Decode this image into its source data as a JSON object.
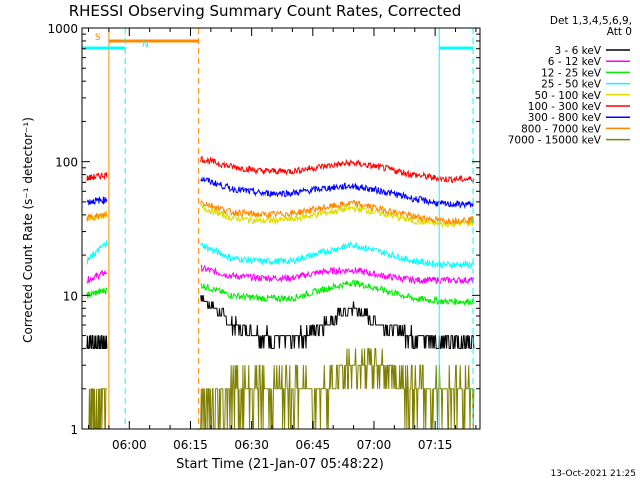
{
  "chart_data": {
    "type": "line",
    "title": "RHESSI Observing Summary Count Rates, Corrected",
    "xlabel": "Start Time (21-Jan-07 05:48:22)",
    "ylabel": "Corrected Count Rate (s⁻¹ detector⁻¹)",
    "yscale": "log",
    "ylim": [
      1,
      1000
    ],
    "xlim_minutes": [
      48.4,
      146
    ],
    "x_ticks": [
      {
        "label": "06:00",
        "min": 60
      },
      {
        "label": "06:15",
        "min": 75
      },
      {
        "label": "06:30",
        "min": 90
      },
      {
        "label": "06:45",
        "min": 105
      },
      {
        "label": "07:00",
        "min": 120
      },
      {
        "label": "07:15",
        "min": 135
      }
    ],
    "y_ticks": [
      {
        "label": "1",
        "value": 1
      },
      {
        "label": "10",
        "value": 10
      },
      {
        "label": "100",
        "value": 100
      },
      {
        "label": "1000",
        "value": 1000
      }
    ],
    "legend": {
      "placement": "right",
      "header": [
        "Det 1,3,4,5,6,9,",
        "Att 0"
      ],
      "entries": [
        {
          "label": "3 - 6 keV",
          "color": "#000000"
        },
        {
          "label": "6 - 12 keV",
          "color": "#ff00ff"
        },
        {
          "label": "12 - 25 keV",
          "color": "#00ee00"
        },
        {
          "label": "25 - 50 keV",
          "color": "#00ffff"
        },
        {
          "label": "50 - 100 keV",
          "color": "#dddd00"
        },
        {
          "label": "100 - 300 keV",
          "color": "#ff0000"
        },
        {
          "label": "300 - 800 keV",
          "color": "#0000ff"
        },
        {
          "label": "800 - 7000 keV",
          "color": "#ff8800"
        },
        {
          "label": "7000 - 15000 keV",
          "color": "#808000"
        }
      ]
    },
    "gap_minutes": [
      54.5,
      77.5
    ],
    "series": [
      {
        "name": "3 - 6 keV",
        "color": "#000000",
        "values_before_gap": [
          4.5,
          4.5
        ],
        "values_after_gap": [
          10,
          6,
          5,
          4.5,
          6,
          8,
          6,
          5,
          4.5,
          4.5
        ]
      },
      {
        "name": "6 - 12 keV",
        "color": "#ff00ff",
        "values_before_gap": [
          13,
          15
        ],
        "values_after_gap": [
          16,
          14,
          13.5,
          13.5,
          15,
          15.5,
          14,
          13,
          13,
          13
        ]
      },
      {
        "name": "12 - 25 keV",
        "color": "#00ee00",
        "values_before_gap": [
          10,
          11
        ],
        "values_after_gap": [
          12,
          10,
          9.5,
          9.5,
          11,
          12.5,
          11,
          9.5,
          9,
          9
        ]
      },
      {
        "name": "25 - 50 keV",
        "color": "#00ffff",
        "values_before_gap": [
          18,
          25
        ],
        "values_after_gap": [
          24,
          19,
          18,
          18,
          21,
          24,
          21,
          18,
          17,
          17
        ]
      },
      {
        "name": "50 - 100 keV",
        "color": "#dddd00",
        "values_before_gap": [
          37,
          40
        ],
        "values_after_gap": [
          46,
          38,
          36,
          37,
          41,
          45,
          41,
          36,
          34,
          35
        ]
      },
      {
        "name": "100 - 300 keV",
        "color": "#ff0000",
        "values_before_gap": [
          75,
          80
        ],
        "values_after_gap": [
          105,
          92,
          85,
          85,
          92,
          98,
          90,
          80,
          74,
          74
        ]
      },
      {
        "name": "300 - 800 keV",
        "color": "#0000ff",
        "values_before_gap": [
          50,
          52
        ],
        "values_after_gap": [
          75,
          63,
          58,
          58,
          63,
          66,
          60,
          53,
          48,
          48
        ]
      },
      {
        "name": "800 - 7000 keV",
        "color": "#ff8800",
        "values_before_gap": [
          38,
          40
        ],
        "values_after_gap": [
          50,
          42,
          40,
          41,
          45,
          49,
          44,
          39,
          36,
          37
        ]
      },
      {
        "name": "7000 - 15000 keV",
        "color": "#808000",
        "values_before_gap": [
          1,
          2
        ],
        "values_after_gap": [
          1,
          2,
          2,
          2,
          2,
          3,
          3,
          2,
          2,
          2
        ]
      }
    ],
    "flags": [
      {
        "label": "S",
        "color": "#ff8800",
        "start_min": 55,
        "end_min": 77
      },
      {
        "label": "N",
        "color": "#00ffff",
        "start_min": 48.4,
        "end_min": 59
      }
    ]
  },
  "footer_timestamp": "13-Oct-2021 21:25"
}
